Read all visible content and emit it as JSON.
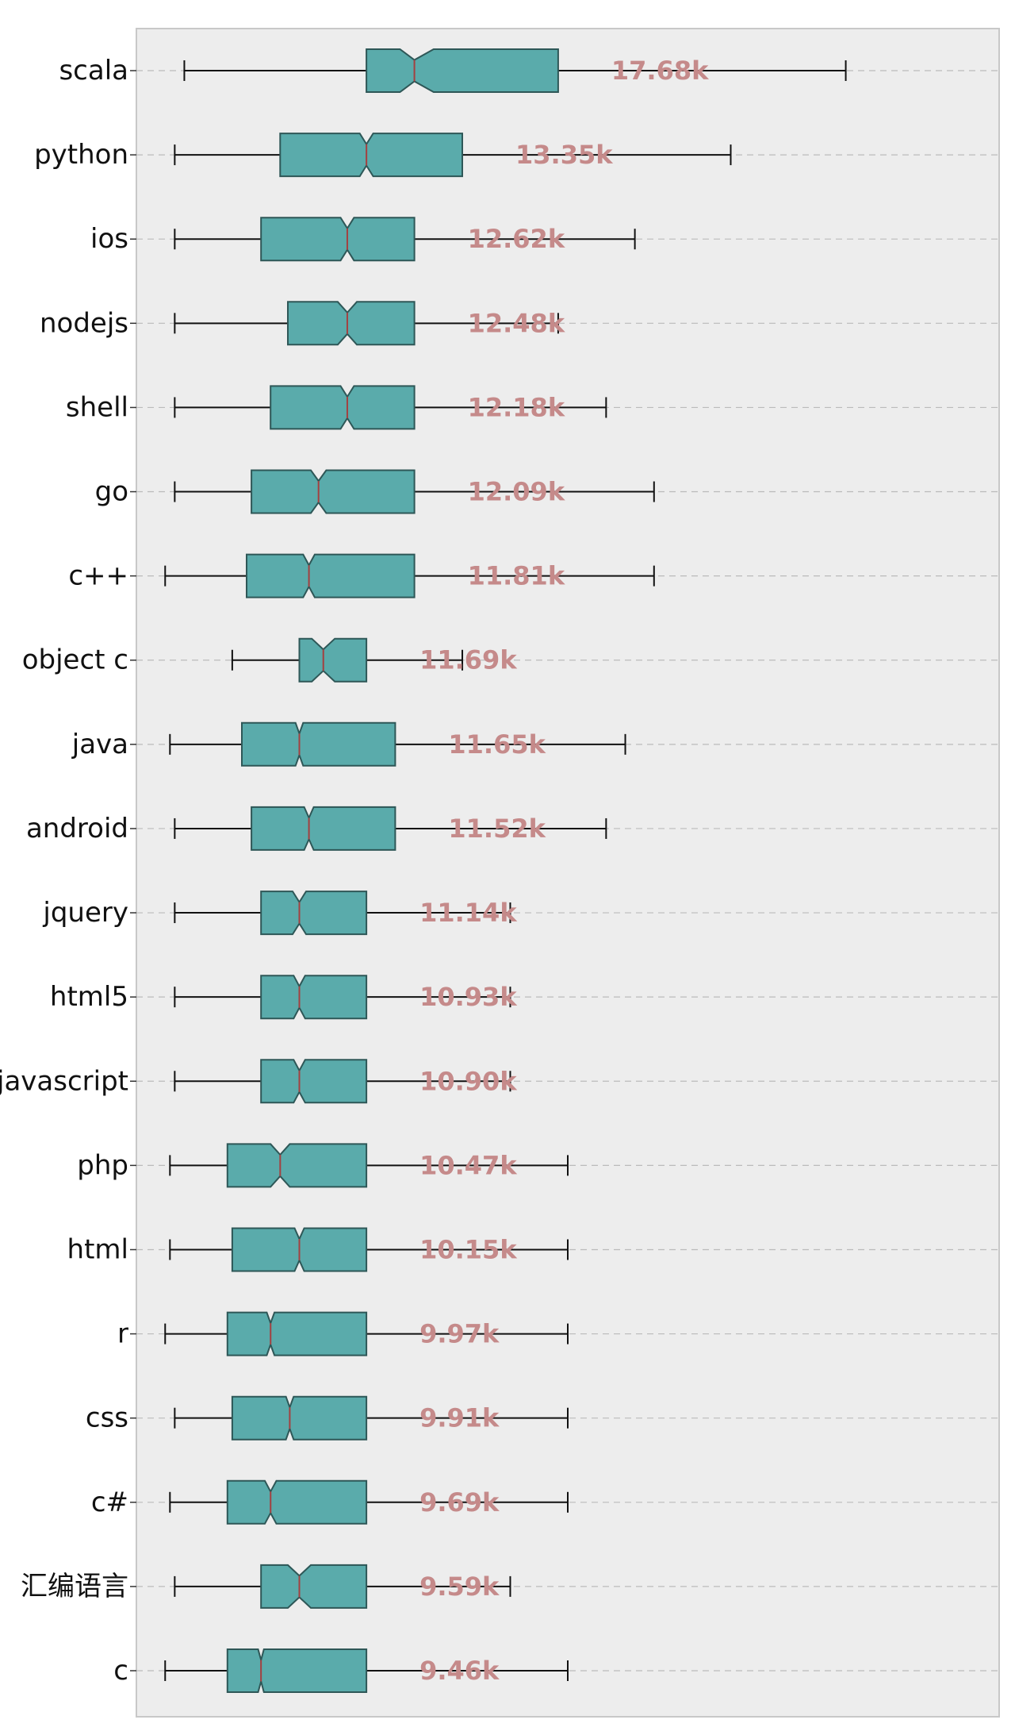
{
  "chart_data": {
    "type": "boxplot",
    "orientation": "horizontal",
    "notched": true,
    "grid": "horizontal dashed",
    "legend": "none",
    "xlim": [
      -17,
      73
    ],
    "categories": [
      "scala",
      "python",
      "ios",
      "nodejs",
      "shell",
      "go",
      "c++",
      "object c",
      "java",
      "android",
      "jquery",
      "html5",
      "javascript",
      "php",
      "html",
      "r",
      "css",
      "c#",
      "汇编语言",
      "c"
    ],
    "mean_labels": [
      "17.68k",
      "13.35k",
      "12.62k",
      "12.48k",
      "12.18k",
      "12.09k",
      "11.81k",
      "11.69k",
      "11.65k",
      "11.52k",
      "11.14k",
      "10.93k",
      "10.90k",
      "10.47k",
      "10.15k",
      "9.97k",
      "9.91k",
      "9.69k",
      "9.59k",
      "9.46k"
    ],
    "boxes": [
      {
        "min": -12.0,
        "q1": 7.0,
        "median": 12.0,
        "q3": 27.0,
        "max": 57.0,
        "notch_low": 10.5,
        "notch_high": 14.0
      },
      {
        "min": -13.0,
        "q1": -2.0,
        "median": 7.0,
        "q3": 17.0,
        "max": 45.0,
        "notch_low": 6.3,
        "notch_high": 7.7
      },
      {
        "min": -13.0,
        "q1": -4.0,
        "median": 5.0,
        "q3": 12.0,
        "max": 35.0,
        "notch_low": 4.3,
        "notch_high": 5.7
      },
      {
        "min": -13.0,
        "q1": -1.2,
        "median": 5.0,
        "q3": 12.0,
        "max": 27.0,
        "notch_low": 4.0,
        "notch_high": 6.0
      },
      {
        "min": -13.0,
        "q1": -3.0,
        "median": 5.0,
        "q3": 12.0,
        "max": 32.0,
        "notch_low": 4.3,
        "notch_high": 5.7
      },
      {
        "min": -13.0,
        "q1": -5.0,
        "median": 2.0,
        "q3": 12.0,
        "max": 37.0,
        "notch_low": 1.2,
        "notch_high": 2.8
      },
      {
        "min": -14.0,
        "q1": -5.5,
        "median": 1.0,
        "q3": 12.0,
        "max": 37.0,
        "notch_low": 0.4,
        "notch_high": 1.6
      },
      {
        "min": -7.0,
        "q1": 0.0,
        "median": 2.5,
        "q3": 7.0,
        "max": 17.0,
        "notch_low": 1.3,
        "notch_high": 3.7
      },
      {
        "min": -13.5,
        "q1": -6.0,
        "median": 0.0,
        "q3": 10.0,
        "max": 34.0,
        "notch_low": -0.4,
        "notch_high": 0.4
      },
      {
        "min": -13.0,
        "q1": -5.0,
        "median": 1.0,
        "q3": 10.0,
        "max": 32.0,
        "notch_low": 0.5,
        "notch_high": 1.5
      },
      {
        "min": -13.0,
        "q1": -4.0,
        "median": 0.0,
        "q3": 7.0,
        "max": 22.0,
        "notch_low": -0.7,
        "notch_high": 0.7
      },
      {
        "min": -13.0,
        "q1": -4.0,
        "median": 0.0,
        "q3": 7.0,
        "max": 22.0,
        "notch_low": -0.6,
        "notch_high": 0.6
      },
      {
        "min": -13.0,
        "q1": -4.0,
        "median": 0.0,
        "q3": 7.0,
        "max": 22.0,
        "notch_low": -0.6,
        "notch_high": 0.6
      },
      {
        "min": -13.5,
        "q1": -7.5,
        "median": -2.0,
        "q3": 7.0,
        "max": 28.0,
        "notch_low": -3.0,
        "notch_high": -1.0
      },
      {
        "min": -13.5,
        "q1": -7.0,
        "median": 0.0,
        "q3": 7.0,
        "max": 28.0,
        "notch_low": -0.5,
        "notch_high": 0.5
      },
      {
        "min": -14.0,
        "q1": -7.5,
        "median": -3.0,
        "q3": 7.0,
        "max": 28.0,
        "notch_low": -3.4,
        "notch_high": -2.6
      },
      {
        "min": -13.0,
        "q1": -7.0,
        "median": -1.0,
        "q3": 7.0,
        "max": 28.0,
        "notch_low": -1.4,
        "notch_high": -0.6
      },
      {
        "min": -13.5,
        "q1": -7.5,
        "median": -3.0,
        "q3": 7.0,
        "max": 28.0,
        "notch_low": -3.6,
        "notch_high": -2.4
      },
      {
        "min": -13.0,
        "q1": -4.0,
        "median": 0.0,
        "q3": 7.0,
        "max": 22.0,
        "notch_low": -1.2,
        "notch_high": 1.2
      },
      {
        "min": -14.0,
        "q1": -7.5,
        "median": -4.0,
        "q3": 7.0,
        "max": 28.0,
        "notch_low": -4.3,
        "notch_high": -3.7
      }
    ],
    "colors": {
      "background": "#ededed",
      "box_fill": "#5aabab",
      "box_edge": "#2e5757",
      "median": "#a44040",
      "whisker": "#111111",
      "grid": "#bbbbbb",
      "value_label": "#c58a8a",
      "frame": "#c8c8c8"
    }
  }
}
